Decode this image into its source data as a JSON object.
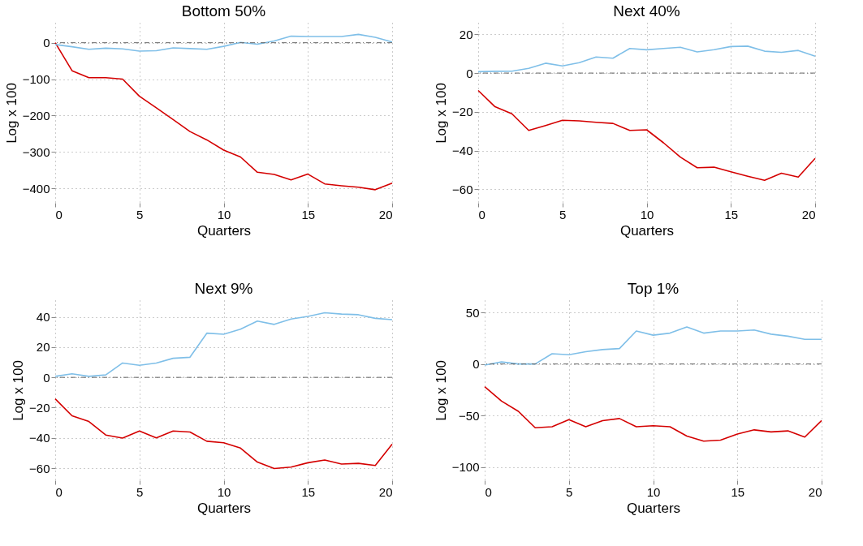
{
  "chart_data": [
    {
      "type": "line",
      "title": "Bottom 50%",
      "xlabel": "Quarters",
      "ylabel": "Log x 100",
      "x": [
        0,
        1,
        2,
        3,
        4,
        5,
        6,
        7,
        8,
        9,
        10,
        11,
        12,
        13,
        14,
        15,
        16,
        17,
        18,
        19,
        20
      ],
      "xlim": [
        0,
        20
      ],
      "xticks": [
        0,
        5,
        10,
        15,
        20
      ],
      "ylim": [
        -440,
        55
      ],
      "yticks": [
        -400,
        -300,
        -200,
        -100,
        0
      ],
      "grid": true,
      "line_style": "solid",
      "series": [
        {
          "color": "#d40000",
          "values": [
            0,
            -77,
            -96,
            -96,
            -100,
            -147,
            -179,
            -211,
            -244,
            -267,
            -295,
            -314,
            -356,
            -362,
            -377,
            -361,
            -388,
            -393,
            -397,
            -404,
            -386
          ]
        },
        {
          "color": "#7fbfe8",
          "values": [
            -5,
            -11,
            -18,
            -15,
            -17,
            -23,
            -22,
            -14,
            -16,
            -18,
            -10,
            1,
            -4,
            5,
            18,
            17,
            17,
            17,
            23,
            15,
            2
          ]
        }
      ],
      "ref_lines": [
        {
          "axis": "y",
          "value": 0,
          "color": "#666666",
          "line_style": "dashed"
        }
      ]
    },
    {
      "type": "line",
      "title": "Next 40%",
      "xlabel": "Quarters",
      "ylabel": "Log x 100",
      "x": [
        0,
        1,
        2,
        3,
        4,
        5,
        6,
        7,
        8,
        9,
        10,
        11,
        12,
        13,
        14,
        15,
        16,
        17,
        18,
        19,
        20
      ],
      "xlim": [
        0,
        20
      ],
      "xticks": [
        0,
        5,
        10,
        15,
        20
      ],
      "ylim": [
        -67,
        26
      ],
      "yticks": [
        -60,
        -40,
        -20,
        0,
        20
      ],
      "grid": true,
      "line_style": "solid",
      "series": [
        {
          "color": "#d40000",
          "values": [
            -9,
            -17.4,
            -21,
            -29.6,
            -27.1,
            -24.4,
            -24.7,
            -25.4,
            -26,
            -29.6,
            -29.3,
            -36,
            -43.4,
            -48.9,
            -48.6,
            -51,
            -53.3,
            -55.4,
            -51.7,
            -53.7,
            -44.1
          ]
        },
        {
          "color": "#7fbfe8",
          "values": [
            0.7,
            0.9,
            1,
            2.4,
            5.1,
            3.7,
            5.4,
            8.3,
            7.7,
            12.7,
            12,
            12.7,
            13.3,
            10.9,
            12.1,
            13.7,
            13.9,
            11.3,
            10.7,
            11.7,
            8.7
          ]
        }
      ],
      "ref_lines": [
        {
          "axis": "y",
          "value": 0,
          "color": "#666666",
          "line_style": "dashed"
        }
      ]
    },
    {
      "type": "line",
      "title": "Next 9%",
      "xlabel": "Quarters",
      "ylabel": "Log x 100",
      "x": [
        0,
        1,
        2,
        3,
        4,
        5,
        6,
        7,
        8,
        9,
        10,
        11,
        12,
        13,
        14,
        15,
        16,
        17,
        18,
        19,
        20
      ],
      "xlim": [
        0,
        20
      ],
      "xticks": [
        0,
        5,
        10,
        15,
        20
      ],
      "ylim": [
        -68,
        51
      ],
      "yticks": [
        -60,
        -40,
        -20,
        0,
        20,
        40
      ],
      "grid": true,
      "line_style": "solid",
      "series": [
        {
          "color": "#d40000",
          "values": [
            -14.2,
            -25.4,
            -29.2,
            -38.1,
            -40.1,
            -35.4,
            -40,
            -35.4,
            -36.1,
            -42.2,
            -43.2,
            -46.7,
            -56,
            -60.2,
            -59.3,
            -56.4,
            -54.6,
            -57.3,
            -56.8,
            -58.2,
            -44.2
          ]
        },
        {
          "color": "#7fbfe8",
          "values": [
            0.7,
            2.4,
            0.7,
            1.6,
            9.5,
            8,
            9.5,
            12.6,
            13.3,
            29.2,
            28.5,
            31.8,
            37.2,
            35,
            38.5,
            40.3,
            42.7,
            41.8,
            41.4,
            39,
            38.1
          ]
        }
      ],
      "ref_lines": [
        {
          "axis": "y",
          "value": 0,
          "color": "#666666",
          "line_style": "dashed"
        }
      ]
    },
    {
      "type": "line",
      "title": "Top 1%",
      "xlabel": "Quarters",
      "ylabel": "Log x 100",
      "x": [
        0,
        1,
        2,
        3,
        4,
        5,
        6,
        7,
        8,
        9,
        10,
        11,
        12,
        13,
        14,
        15,
        16,
        17,
        18,
        19,
        20
      ],
      "xlim": [
        0,
        20
      ],
      "xticks": [
        0,
        5,
        10,
        15,
        20
      ],
      "ylim": [
        -113,
        62
      ],
      "yticks": [
        -100,
        -50,
        0,
        50
      ],
      "grid": true,
      "line_style": "solid",
      "series": [
        {
          "color": "#d40000",
          "values": [
            -22,
            -36,
            -46,
            -62,
            -61,
            -54,
            -61,
            -55,
            -53,
            -61,
            -60,
            -61,
            -70,
            -75,
            -74,
            -68,
            -64,
            -66,
            -65,
            -71,
            -55
          ]
        },
        {
          "color": "#7fbfe8",
          "values": [
            -1,
            2,
            0,
            0,
            10,
            9,
            12,
            14,
            15,
            32,
            28,
            30,
            36,
            30,
            32,
            32,
            33,
            29,
            27,
            24,
            24
          ]
        }
      ],
      "ref_lines": [
        {
          "axis": "y",
          "value": 0,
          "color": "#666666",
          "line_style": "dashed"
        }
      ]
    }
  ]
}
